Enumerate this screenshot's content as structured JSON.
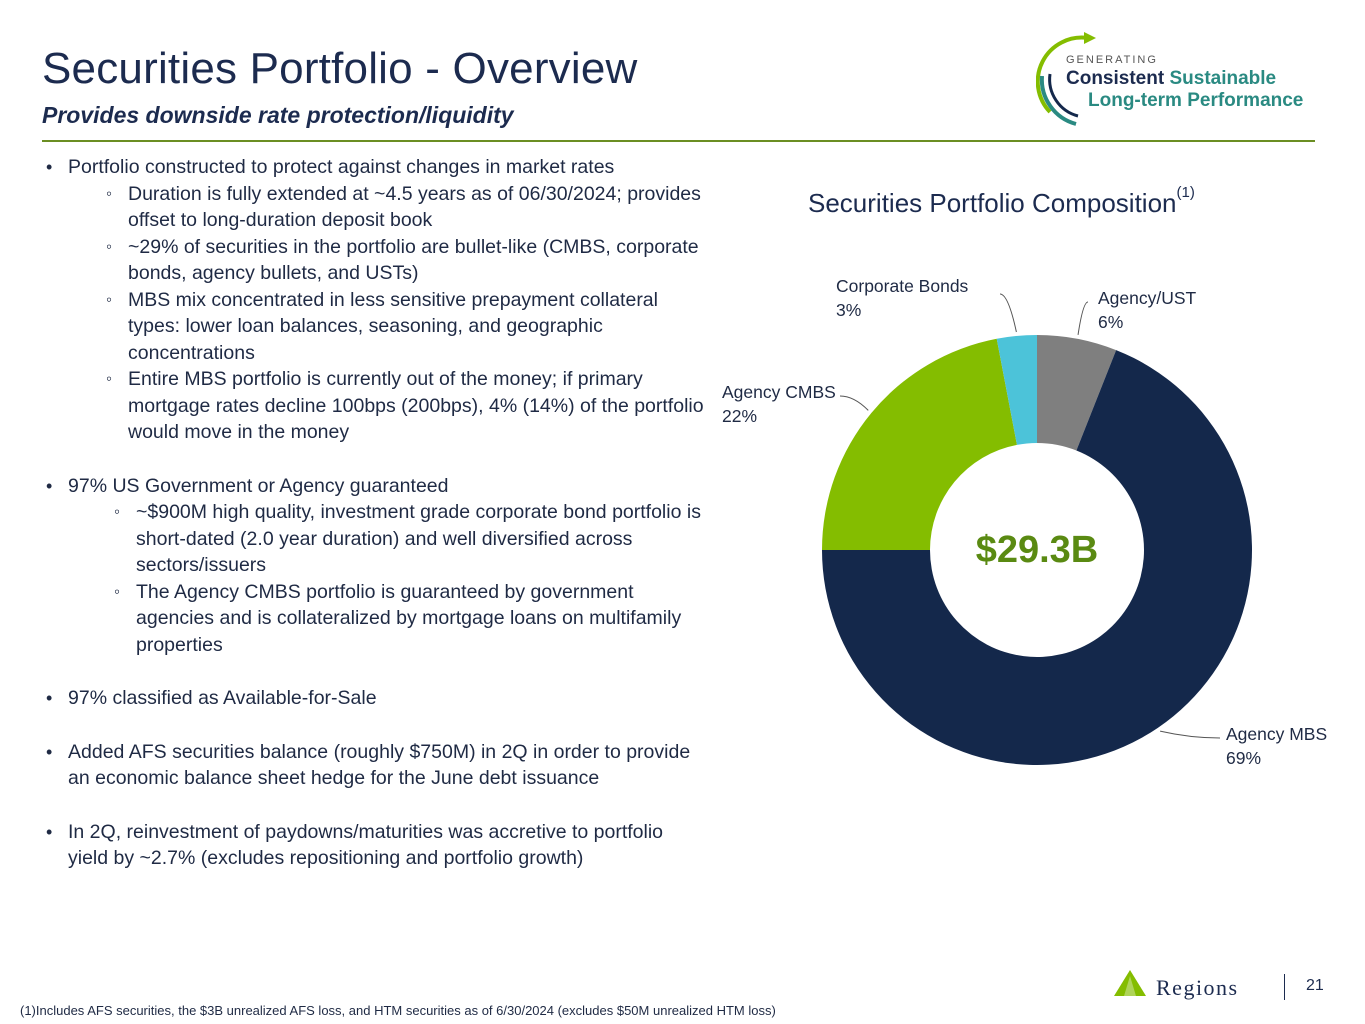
{
  "header": {
    "title": "Securities Portfolio  - Overview",
    "subtitle": "Provides downside rate protection/liquidity"
  },
  "logo": {
    "small": "GENERATING",
    "line1a": "Consistent",
    "line1b": "Sustainable",
    "line2": "Long-term Performance"
  },
  "bullets": [
    {
      "text": "Portfolio constructed to protect against changes in market rates",
      "subs": [
        "Duration is fully extended at ~4.5 years as of 06/30/2024; provides offset to long-duration deposit book",
        "~29% of securities in the portfolio are bullet-like (CMBS, corporate bonds, agency bullets, and USTs)",
        "MBS mix concentrated in less sensitive prepayment collateral types: lower loan balances, seasoning, and geographic concentrations",
        "Entire MBS portfolio is currently out of the money; if primary mortgage rates decline 100bps (200bps), 4% (14%) of the portfolio would move in the money"
      ]
    },
    {
      "text": "97% US Government or Agency guaranteed",
      "subs": [
        "~$900M high quality, investment grade corporate bond portfolio is short-dated (2.0 year duration) and well diversified across sectors/issuers",
        "The Agency CMBS portfolio is guaranteed by government agencies and is collateralized by mortgage loans on multifamily properties"
      ]
    },
    {
      "text": "97% classified as Available-for-Sale",
      "subs": []
    },
    {
      "text": "Added AFS securities balance (roughly $750M) in 2Q in order to provide an economic balance sheet hedge for the June debt issuance",
      "subs": []
    },
    {
      "text": "In 2Q, reinvestment of paydowns/maturities was accretive to portfolio yield by ~2.7% (excludes repositioning and portfolio growth)",
      "subs": []
    }
  ],
  "chart_data": {
    "type": "pie",
    "title": "Securities Portfolio Composition",
    "title_note": "(1)",
    "center_label": "$29.3B",
    "slices": [
      {
        "name": "Agency/UST",
        "value": 6,
        "label": "6%",
        "color": "#7f7f7f"
      },
      {
        "name": "Agency MBS",
        "value": 69,
        "label": "69%",
        "color": "#14284b"
      },
      {
        "name": "Agency CMBS",
        "value": 22,
        "label": "22%",
        "color": "#84bd00"
      },
      {
        "name": "Corporate Bonds",
        "value": 3,
        "label": "3%",
        "color": "#4cc3d9"
      }
    ]
  },
  "footer": {
    "footnote": "(1)Includes AFS securities, the $3B unrealized AFS loss, and HTM securities as of 6/30/2024 (excludes $50M unrealized HTM loss)",
    "brand": "Regions",
    "page_number": "21"
  }
}
